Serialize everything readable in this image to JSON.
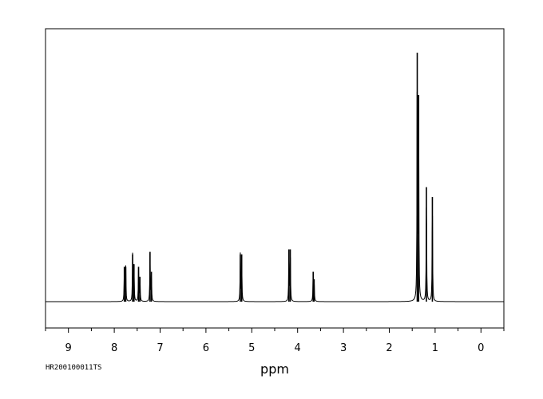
{
  "sample_id": "HR200100011TS",
  "chart_data": {
    "type": "line",
    "xlabel": "ppm",
    "ylabel": "",
    "xlim": [
      9.5,
      -0.5
    ],
    "x_reversed": true,
    "ticks": [
      "9",
      "8",
      "7",
      "6",
      "5",
      "4",
      "3",
      "2",
      "1",
      "0"
    ],
    "grid": false,
    "series": [
      {
        "peaks": [
          {
            "ppm": 7.78,
            "height": 0.14
          },
          {
            "ppm": 7.75,
            "height": 0.14
          },
          {
            "ppm": 7.6,
            "height": 0.19
          },
          {
            "ppm": 7.57,
            "height": 0.15
          },
          {
            "ppm": 7.47,
            "height": 0.14
          },
          {
            "ppm": 7.44,
            "height": 0.1
          },
          {
            "ppm": 7.22,
            "height": 0.2
          },
          {
            "ppm": 7.19,
            "height": 0.12
          },
          {
            "ppm": 5.25,
            "height": 0.19
          },
          {
            "ppm": 5.22,
            "height": 0.19
          },
          {
            "ppm": 4.19,
            "height": 0.21
          },
          {
            "ppm": 4.16,
            "height": 0.21
          },
          {
            "ppm": 3.66,
            "height": 0.12
          },
          {
            "ppm": 3.64,
            "height": 0.09
          },
          {
            "ppm": 1.39,
            "height": 1.0
          },
          {
            "ppm": 1.36,
            "height": 0.83
          },
          {
            "ppm": 1.19,
            "height": 0.46
          },
          {
            "ppm": 1.06,
            "height": 0.42
          }
        ]
      }
    ]
  }
}
